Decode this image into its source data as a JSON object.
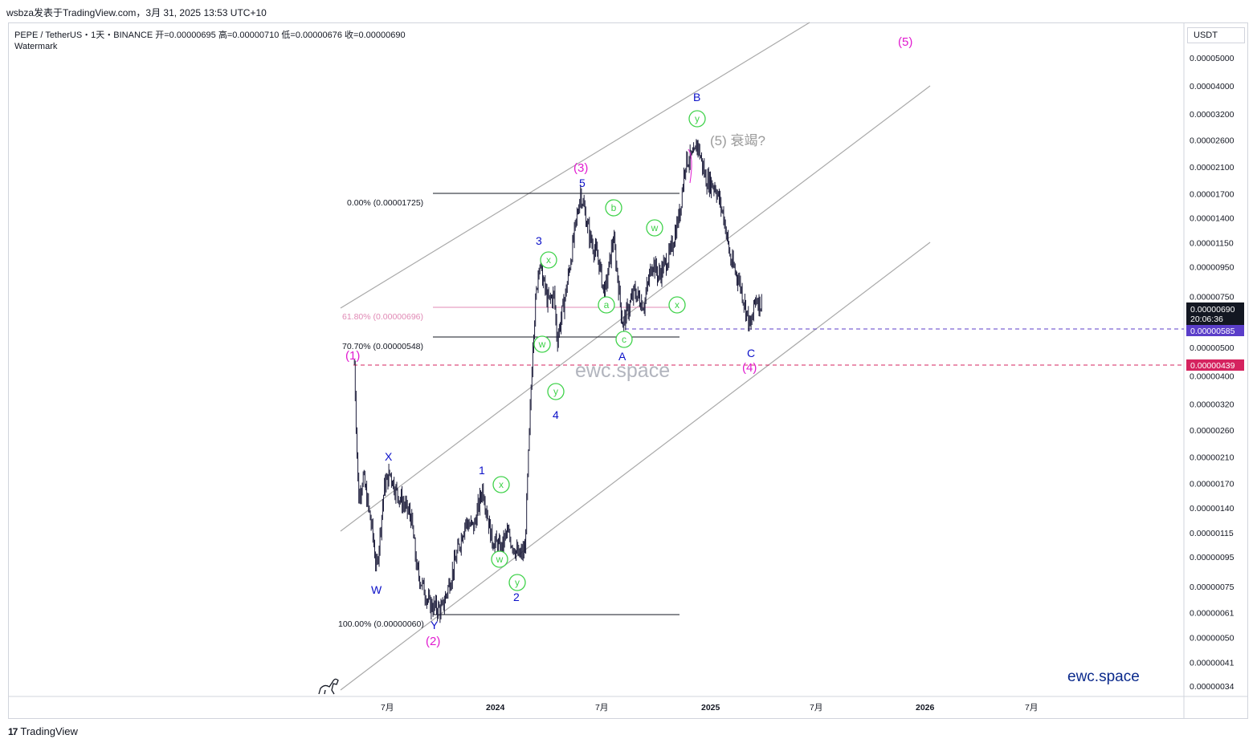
{
  "header": {
    "caption": "wsbza发表于TradingView.com，3月 31, 2025 13:53 UTC+10",
    "symbol_line": "PEPE / TetherUS・1天・BINANCE  开=0.00000695  高=0.00000710  低=0.00000676  收=0.00000690",
    "watermark_label": "Watermark"
  },
  "price_scale": {
    "currency": "USDT",
    "ticks": [
      "0.00005000",
      "0.00004000",
      "0.00003200",
      "0.00002600",
      "0.00002100",
      "0.00001700",
      "0.00001400",
      "0.00001150",
      "0.00000950",
      "0.00000750",
      "0.00000500",
      "0.00000400",
      "0.00000320",
      "0.00000260",
      "0.00000210",
      "0.00000170",
      "0.00000140",
      "0.00000115",
      "0.00000095",
      "0.00000075",
      "0.00000061",
      "0.00000050",
      "0.00000041",
      "0.00000034"
    ],
    "current_price": "0.00000690",
    "countdown": "20:06:36",
    "line_purple": "0.00000585",
    "line_pink": "0.00000439"
  },
  "time_axis": [
    "7月",
    "2024",
    "7月",
    "2025",
    "7月",
    "2026",
    "7月"
  ],
  "fib_labels": {
    "f0": "0.00% (0.00001725)",
    "f618": "61.80% (0.00000696)",
    "f707": "70.70% (0.00000548)",
    "f100": "100.00% (0.00000060)"
  },
  "waves": {
    "p1": "(1)",
    "p2": "(2)",
    "p3": "(3)",
    "p4": "(4)",
    "p5": "(5)",
    "w": "W",
    "x_big": "X",
    "y_big": "Y",
    "n1": "1",
    "n2": "2",
    "n3": "3",
    "n4": "4",
    "n5": "5",
    "a_big": "A",
    "b_big": "B",
    "c_big": "C",
    "exhaustion": "(5) 衰竭?"
  },
  "circles": [
    {
      "name": "circle-w-1",
      "t": "w"
    },
    {
      "name": "circle-x-1",
      "t": "x"
    },
    {
      "name": "circle-y-1",
      "t": "y"
    },
    {
      "name": "circle-w-2",
      "t": "w"
    },
    {
      "name": "circle-x-2",
      "t": "x"
    },
    {
      "name": "circle-y-2",
      "t": "y"
    },
    {
      "name": "circle-b",
      "t": "b"
    },
    {
      "name": "circle-a",
      "t": "a"
    },
    {
      "name": "circle-c",
      "t": "c"
    },
    {
      "name": "circle-w-3",
      "t": "w"
    },
    {
      "name": "circle-x-3",
      "t": "x"
    },
    {
      "name": "circle-y-3",
      "t": "y"
    }
  ],
  "watermark_center": "ewc.space",
  "watermark_corner": "ewc.space",
  "brand": {
    "name": "TradingView",
    "logo": "17"
  },
  "colors": {
    "candles": "#1c1c3a",
    "wave_blue": "#0b10c8",
    "wave_magenta": "#e11bd0",
    "circle_green": "#3fd24a",
    "purple_line": "#5b3ec9",
    "pink_line": "#d5235f",
    "fib_pink": "#e08ab5"
  },
  "chart_data": {
    "type": "candlestick",
    "symbol": "PEPE / TetherUS",
    "interval": "1天",
    "exchange": "BINANCE",
    "ohlc_last": {
      "open": 6.95e-06,
      "high": 7.1e-06,
      "low": 6.76e-06,
      "close": 6.9e-06
    },
    "y_scale": "log",
    "ylim": [
      3.4e-07,
      5e-05
    ],
    "close_path": [
      [
        "2023-05-05",
        4.4e-06
      ],
      [
        "2023-05-12",
        1.5e-06
      ],
      [
        "2023-05-20",
        1.8e-06
      ],
      [
        "2023-06-05",
        1.15e-06
      ],
      [
        "2023-06-12",
        8.5e-07
      ],
      [
        "2023-06-25",
        1.65e-06
      ],
      [
        "2023-07-05",
        1.85e-06
      ],
      [
        "2023-07-15",
        1.6e-06
      ],
      [
        "2023-08-10",
        1.3e-06
      ],
      [
        "2023-08-20",
        8.5e-07
      ],
      [
        "2023-09-10",
        6.5e-07
      ],
      [
        "2023-10-01",
        6.2e-07
      ],
      [
        "2023-10-20",
        8.5e-07
      ],
      [
        "2023-11-10",
        1.25e-06
      ],
      [
        "2023-11-25",
        1.2e-06
      ],
      [
        "2023-12-10",
        1.65e-06
      ],
      [
        "2023-12-25",
        1.1e-06
      ],
      [
        "2024-01-10",
        1e-06
      ],
      [
        "2024-01-20",
        1.15e-06
      ],
      [
        "2024-02-10",
        9.5e-07
      ],
      [
        "2024-02-20",
        1e-06
      ],
      [
        "2024-03-05",
        5.5e-06
      ],
      [
        "2024-03-15",
        1e-05
      ],
      [
        "2024-03-30",
        7.2e-06
      ],
      [
        "2024-04-10",
        7.6e-06
      ],
      [
        "2024-04-15",
        5.3e-06
      ],
      [
        "2024-05-01",
        8e-06
      ],
      [
        "2024-05-25",
        1.725e-05
      ],
      [
        "2024-06-10",
        1.2e-05
      ],
      [
        "2024-06-25",
        1e-05
      ],
      [
        "2024-07-05",
        7.5e-06
      ],
      [
        "2024-07-20",
        1.2e-05
      ],
      [
        "2024-08-05",
        6e-06
      ],
      [
        "2024-08-25",
        7.8e-06
      ],
      [
        "2024-09-10",
        7e-06
      ],
      [
        "2024-09-25",
        1e-05
      ],
      [
        "2024-10-05",
        8.8e-06
      ],
      [
        "2024-10-25",
        1.05e-05
      ],
      [
        "2024-11-10",
        1.45e-05
      ],
      [
        "2024-11-20",
        2.2e-05
      ],
      [
        "2024-12-05",
        2.28e-05
      ],
      [
        "2024-12-10",
        2.55e-05
      ],
      [
        "2024-12-25",
        1.9e-05
      ],
      [
        "2025-01-10",
        1.8e-05
      ],
      [
        "2025-01-25",
        1.4e-05
      ],
      [
        "2025-02-05",
        1e-05
      ],
      [
        "2025-02-20",
        8.5e-06
      ],
      [
        "2025-03-11",
        5.8e-06
      ],
      [
        "2025-03-20",
        7.5e-06
      ],
      [
        "2025-03-31",
        6.9e-06
      ]
    ],
    "fib_levels": [
      {
        "pct": "0.00%",
        "price": 1.725e-05
      },
      {
        "pct": "61.80%",
        "price": 6.96e-06
      },
      {
        "pct": "70.70%",
        "price": 5.48e-06
      },
      {
        "pct": "100.00%",
        "price": 6e-07
      }
    ],
    "horizontal_lines": [
      5.85e-06,
      4.39e-06
    ],
    "x_ticks": [
      "7月",
      "2024",
      "7月",
      "2025",
      "7月",
      "2026",
      "7月"
    ]
  }
}
